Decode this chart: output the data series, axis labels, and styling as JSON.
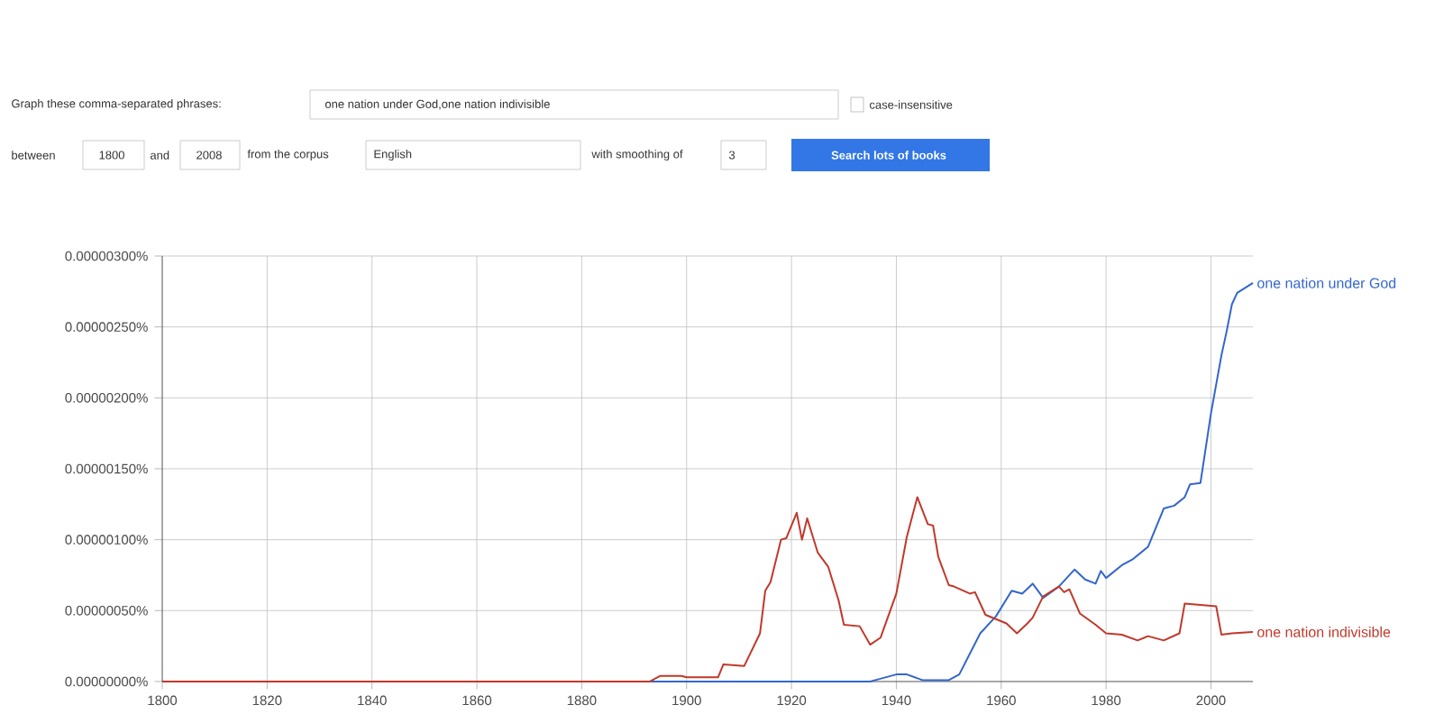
{
  "chart_data": {
    "type": "line",
    "xlim": [
      1800,
      2008
    ],
    "xticks": [
      1800,
      1820,
      1840,
      1860,
      1880,
      1900,
      1920,
      1940,
      1960,
      1980,
      2000
    ],
    "ylim": [
      0,
      3e-06
    ],
    "yticks": [
      {
        "value": 0,
        "label": "0.00000000%"
      },
      {
        "value": 5e-07,
        "label": "0.00000050%"
      },
      {
        "value": 1e-06,
        "label": "0.00000100%"
      },
      {
        "value": 1.5e-06,
        "label": "0.00000150%"
      },
      {
        "value": 2e-06,
        "label": "0.00000200%"
      },
      {
        "value": 2.5e-06,
        "label": "0.00000250%"
      },
      {
        "value": 3e-06,
        "label": "0.00000300%"
      }
    ],
    "grid": true,
    "annotations": [
      "Graph these comma-separated phrases:",
      "one nation under God,one nation indivisible",
      "case-insensitive",
      "between",
      "1800",
      "and",
      "2008",
      "from the corpus",
      "English",
      "with smoothing of",
      "3",
      "Search lots of books"
    ],
    "series": [
      {
        "name": "one nation under God",
        "color": "#3366cc",
        "x": [
          1800,
          1935,
          1936,
          1940,
          1942,
          1945,
          1950,
          1952,
          1956,
          1959,
          1962,
          1964,
          1966,
          1968,
          1971,
          1974,
          1976,
          1978,
          1979,
          1980,
          1983,
          1985,
          1988,
          1991,
          1993,
          1995,
          1996,
          1998,
          2000,
          2002,
          2003,
          2004,
          2005,
          2008
        ],
        "values": [
          0,
          0,
          1e-08,
          5e-08,
          5e-08,
          1e-08,
          1e-08,
          5e-08,
          3.4e-07,
          4.6e-07,
          6.4e-07,
          6.2e-07,
          6.9e-07,
          5.9e-07,
          6.7e-07,
          7.9e-07,
          7.2e-07,
          6.9e-07,
          7.8e-07,
          7.3e-07,
          8.2e-07,
          8.6e-07,
          9.5e-07,
          1.22e-06,
          1.24e-06,
          1.3e-06,
          1.39e-06,
          1.4e-06,
          1.89e-06,
          2.3e-06,
          2.47e-06,
          2.66e-06,
          2.74e-06,
          2.81e-06
        ]
      },
      {
        "name": "one nation indivisible",
        "color": "#c0392b",
        "x": [
          1800,
          1893,
          1895,
          1899,
          1900,
          1906,
          1907,
          1911,
          1914,
          1915,
          1916,
          1918,
          1919,
          1921,
          1922,
          1923,
          1925,
          1927,
          1929,
          1930,
          1933,
          1935,
          1937,
          1940,
          1942,
          1944,
          1946,
          1947,
          1948,
          1950,
          1951,
          1954,
          1955,
          1957,
          1959,
          1961,
          1963,
          1965,
          1966,
          1968,
          1971,
          1972,
          1973,
          1975,
          1978,
          1980,
          1983,
          1986,
          1988,
          1991,
          1994,
          1995,
          1998,
          2001,
          2002,
          2004,
          2008
        ],
        "values": [
          0,
          0,
          4e-08,
          4e-08,
          3e-08,
          3e-08,
          1.2e-07,
          1.1e-07,
          3.4e-07,
          6.4e-07,
          7e-07,
          1e-06,
          1.01e-06,
          1.19e-06,
          1e-06,
          1.15e-06,
          9.1e-07,
          8.1e-07,
          5.7e-07,
          4e-07,
          3.9e-07,
          2.6e-07,
          3.1e-07,
          6.2e-07,
          1.02e-06,
          1.3e-06,
          1.11e-06,
          1.1e-06,
          8.8e-07,
          6.8e-07,
          6.7e-07,
          6.2e-07,
          6.3e-07,
          4.7e-07,
          4.4e-07,
          4.1e-07,
          3.4e-07,
          4.1e-07,
          4.5e-07,
          6e-07,
          6.7e-07,
          6.3e-07,
          6.5e-07,
          4.8e-07,
          4e-07,
          3.4e-07,
          3.3e-07,
          2.9e-07,
          3.2e-07,
          2.9e-07,
          3.4e-07,
          5.5e-07,
          5.4e-07,
          5.3e-07,
          3.3e-07,
          3.4e-07,
          3.5e-07
        ]
      }
    ]
  }
}
